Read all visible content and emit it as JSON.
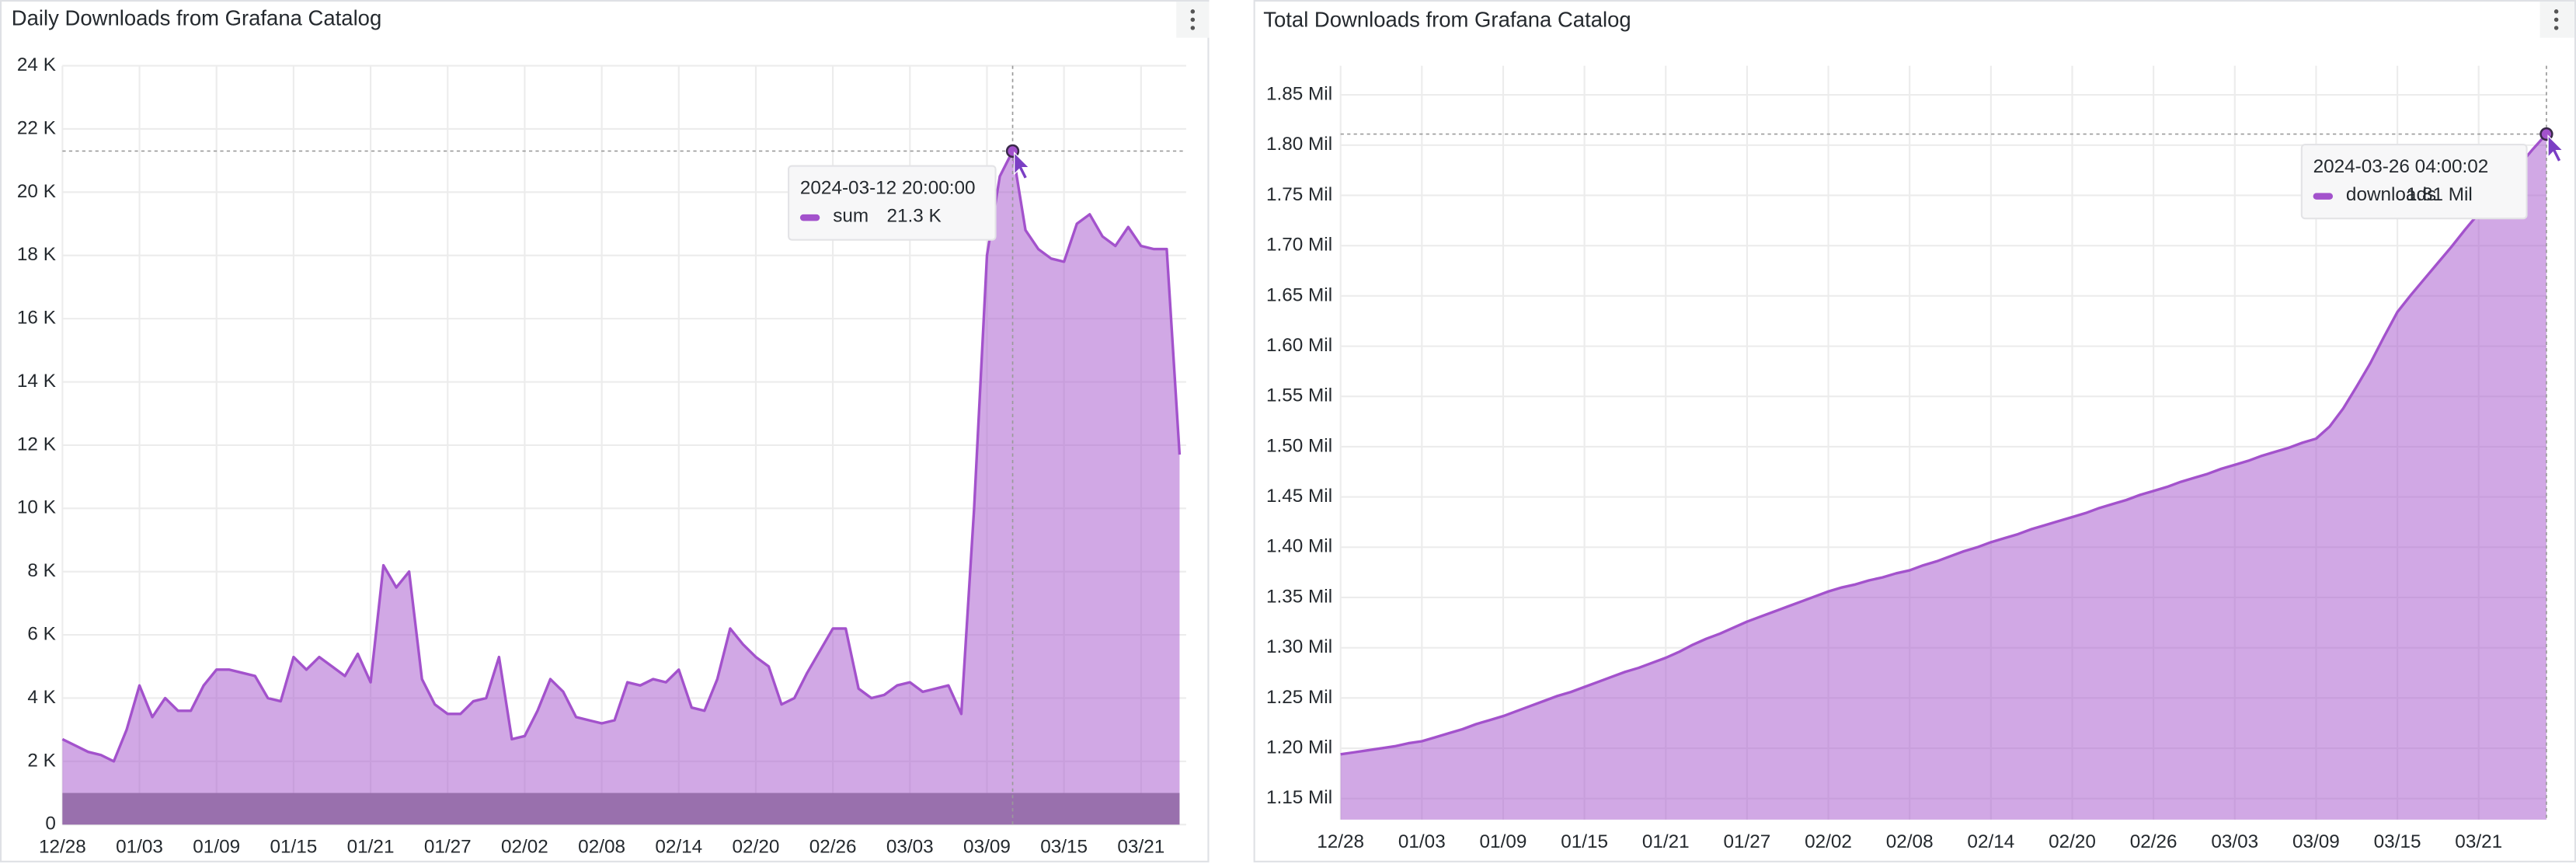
{
  "chart_data": [
    {
      "type": "area",
      "title": "Daily Downloads from Grafana Catalog",
      "x": [
        "12/28",
        "12/29",
        "12/30",
        "12/31",
        "01/01",
        "01/02",
        "01/03",
        "01/04",
        "01/05",
        "01/06",
        "01/07",
        "01/08",
        "01/09",
        "01/10",
        "01/11",
        "01/12",
        "01/13",
        "01/14",
        "01/15",
        "01/16",
        "01/17",
        "01/18",
        "01/19",
        "01/20",
        "01/21",
        "01/22",
        "01/23",
        "01/24",
        "01/25",
        "01/26",
        "01/27",
        "01/28",
        "01/29",
        "01/30",
        "01/31",
        "02/01",
        "02/02",
        "02/03",
        "02/04",
        "02/05",
        "02/06",
        "02/07",
        "02/08",
        "02/09",
        "02/10",
        "02/11",
        "02/12",
        "02/13",
        "02/14",
        "02/15",
        "02/16",
        "02/17",
        "02/18",
        "02/19",
        "02/20",
        "02/21",
        "02/22",
        "02/23",
        "02/24",
        "02/25",
        "02/26",
        "02/27",
        "02/28",
        "02/29",
        "03/01",
        "03/02",
        "03/03",
        "03/04",
        "03/05",
        "03/06",
        "03/07",
        "03/08",
        "03/09",
        "03/10",
        "03/11",
        "03/12",
        "03/13",
        "03/14",
        "03/15",
        "03/16",
        "03/17",
        "03/18",
        "03/19",
        "03/20",
        "03/21",
        "03/22",
        "03/23",
        "03/24"
      ],
      "series": [
        {
          "name": "sum",
          "color": "#a352cc",
          "values": [
            2700,
            2500,
            2300,
            2200,
            2000,
            3000,
            4400,
            3400,
            4000,
            3600,
            3600,
            4400,
            4900,
            4900,
            4800,
            4700,
            4000,
            3900,
            5300,
            4900,
            5300,
            5000,
            4700,
            5400,
            4500,
            8200,
            7500,
            8000,
            4600,
            3800,
            3500,
            3500,
            3900,
            4000,
            5300,
            2700,
            2800,
            3600,
            4600,
            4200,
            3400,
            3300,
            3200,
            3300,
            4500,
            4400,
            4600,
            4500,
            4900,
            3700,
            3600,
            4600,
            6200,
            5700,
            5300,
            5000,
            3800,
            4000,
            4800,
            5500,
            6200,
            6200,
            4300,
            4000,
            4100,
            4400,
            4500,
            4200,
            4300,
            4400,
            3500,
            10000,
            18000,
            20500,
            21300,
            18800,
            18200,
            17900,
            17800,
            19000,
            19300,
            18600,
            18300,
            18900,
            18300,
            18200,
            18200,
            11700
          ]
        }
      ],
      "ylim": [
        0,
        24000
      ],
      "yticks": [
        0,
        {
          "value": 2000,
          "label": "2 K"
        },
        {
          "value": 4000,
          "label": "4 K"
        },
        {
          "value": 6000,
          "label": "6 K"
        },
        {
          "value": 8000,
          "label": "8 K"
        },
        {
          "value": 10000,
          "label": "10 K"
        },
        {
          "value": 12000,
          "label": "12 K"
        },
        {
          "value": 14000,
          "label": "14 K"
        },
        {
          "value": 16000,
          "label": "16 K"
        },
        {
          "value": 18000,
          "label": "18 K"
        },
        {
          "value": 20000,
          "label": "20 K"
        },
        {
          "value": 22000,
          "label": "22 K"
        },
        {
          "value": 24000,
          "label": "24 K"
        }
      ],
      "grid": true,
      "threshold": {
        "range": [
          0,
          1000
        ],
        "color": "#8e8e8e"
      },
      "tooltip": {
        "time": "2024-03-12 20:00:00",
        "value": 21300,
        "value_label": "21.3 K"
      }
    },
    {
      "type": "area",
      "title": "Total Downloads from Grafana Catalog",
      "x": [
        "12/28",
        "12/29",
        "12/30",
        "12/31",
        "01/01",
        "01/02",
        "01/03",
        "01/04",
        "01/05",
        "01/06",
        "01/07",
        "01/08",
        "01/09",
        "01/10",
        "01/11",
        "01/12",
        "01/13",
        "01/14",
        "01/15",
        "01/16",
        "01/17",
        "01/18",
        "01/19",
        "01/20",
        "01/21",
        "01/22",
        "01/23",
        "01/24",
        "01/25",
        "01/26",
        "01/27",
        "01/28",
        "01/29",
        "01/30",
        "01/31",
        "02/01",
        "02/02",
        "02/03",
        "02/04",
        "02/05",
        "02/06",
        "02/07",
        "02/08",
        "02/09",
        "02/10",
        "02/11",
        "02/12",
        "02/13",
        "02/14",
        "02/15",
        "02/16",
        "02/17",
        "02/18",
        "02/19",
        "02/20",
        "02/21",
        "02/22",
        "02/23",
        "02/24",
        "02/25",
        "02/26",
        "02/27",
        "02/28",
        "02/29",
        "03/01",
        "03/02",
        "03/03",
        "03/04",
        "03/05",
        "03/06",
        "03/07",
        "03/08",
        "03/09",
        "03/10",
        "03/11",
        "03/12",
        "03/13",
        "03/14",
        "03/15",
        "03/16",
        "03/17",
        "03/18",
        "03/19",
        "03/20",
        "03/21",
        "03/22",
        "03/23",
        "03/24",
        "03/25",
        "03/26"
      ],
      "series": [
        {
          "name": "downloads",
          "color": "#a352cc",
          "values": [
            1194000,
            1196000,
            1198000,
            1200000,
            1202000,
            1205000,
            1207000,
            1211000,
            1215000,
            1219000,
            1224000,
            1228000,
            1232000,
            1237000,
            1242000,
            1247000,
            1252000,
            1256000,
            1261000,
            1266000,
            1271000,
            1276000,
            1280000,
            1285000,
            1290000,
            1296000,
            1303000,
            1309000,
            1314000,
            1320000,
            1326000,
            1331000,
            1336000,
            1341000,
            1346000,
            1351000,
            1356000,
            1360000,
            1363000,
            1367000,
            1370000,
            1374000,
            1377000,
            1382000,
            1386000,
            1391000,
            1396000,
            1400000,
            1405000,
            1409000,
            1413000,
            1418000,
            1422000,
            1426000,
            1430000,
            1434000,
            1439000,
            1443000,
            1447000,
            1452000,
            1456000,
            1460000,
            1465000,
            1469000,
            1473000,
            1478000,
            1482000,
            1486000,
            1491000,
            1495000,
            1499000,
            1504000,
            1508000,
            1520000,
            1538000,
            1560000,
            1583000,
            1609000,
            1634000,
            1651000,
            1667000,
            1683000,
            1699000,
            1716000,
            1732000,
            1748000,
            1764000,
            1780000,
            1796000,
            1811000
          ]
        }
      ],
      "ylim": [
        1129000,
        1879000
      ],
      "yticks": [
        {
          "value": 1150000,
          "label": "1.15 Mil"
        },
        {
          "value": 1200000,
          "label": "1.20 Mil"
        },
        {
          "value": 1250000,
          "label": "1.25 Mil"
        },
        {
          "value": 1300000,
          "label": "1.30 Mil"
        },
        {
          "value": 1350000,
          "label": "1.35 Mil"
        },
        {
          "value": 1400000,
          "label": "1.40 Mil"
        },
        {
          "value": 1450000,
          "label": "1.45 Mil"
        },
        {
          "value": 1500000,
          "label": "1.50 Mil"
        },
        {
          "value": 1550000,
          "label": "1.55 Mil"
        },
        {
          "value": 1600000,
          "label": "1.60 Mil"
        },
        {
          "value": 1650000,
          "label": "1.65 Mil"
        },
        {
          "value": 1700000,
          "label": "1.70 Mil"
        },
        {
          "value": 1750000,
          "label": "1.75 Mil"
        },
        {
          "value": 1800000,
          "label": "1.80 Mil"
        },
        {
          "value": 1850000,
          "label": "1.85 Mil"
        }
      ],
      "grid": true,
      "tooltip": {
        "time": "2024-03-26 04:00:02",
        "value": 1811000,
        "value_label": "1.81 Mil"
      }
    }
  ]
}
